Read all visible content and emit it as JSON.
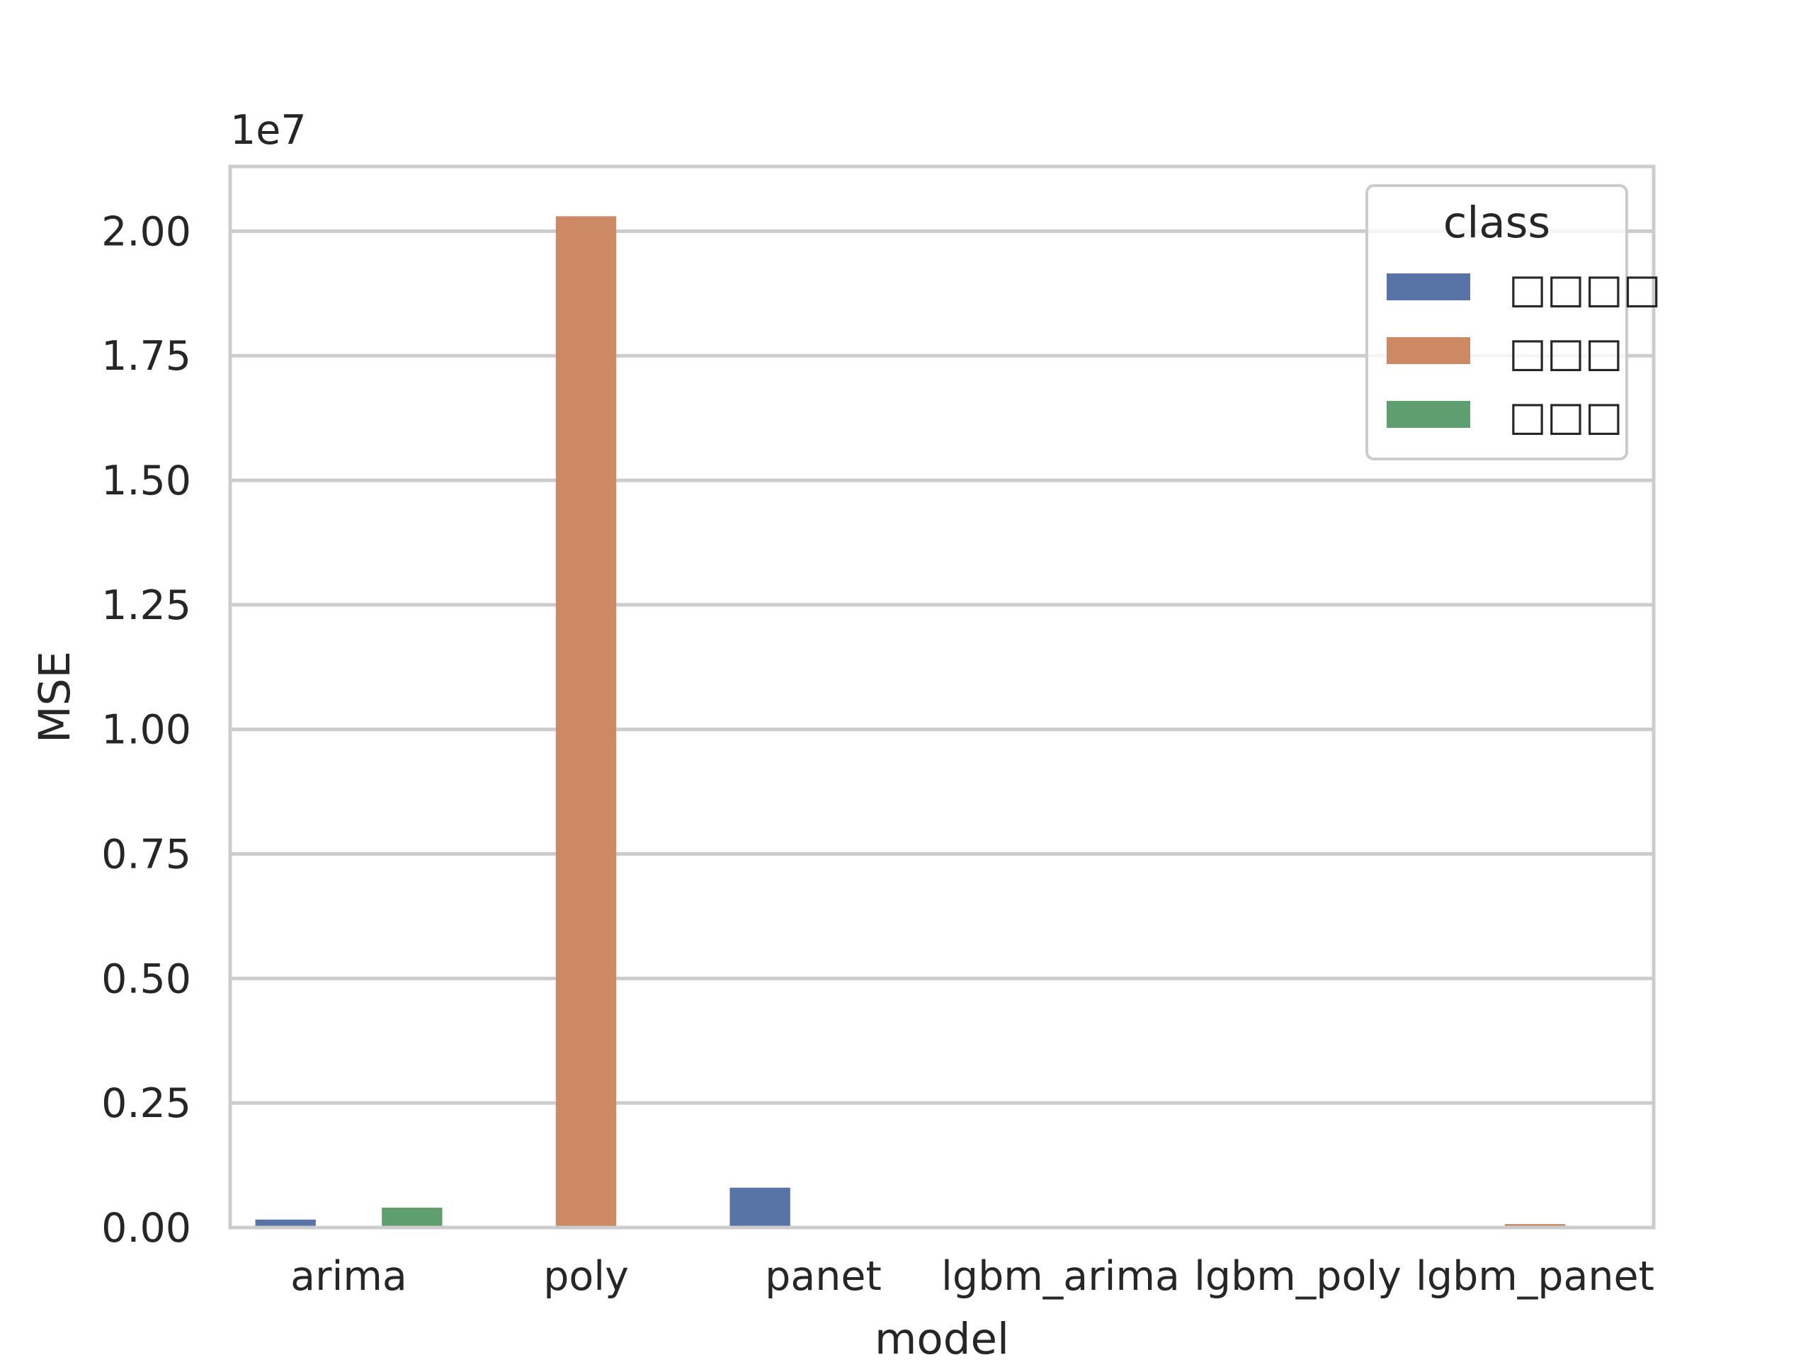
{
  "chart_data": {
    "type": "bar",
    "categories": [
      "arima",
      "poly",
      "panet",
      "lgbm_arima",
      "lgbm_poly",
      "lgbm_panet"
    ],
    "series": [
      {
        "name": "□□□□",
        "color": "#5874a6",
        "values": [
          160000,
          0,
          800000,
          0,
          0,
          10000
        ]
      },
      {
        "name": "□□□",
        "color": "#cc8963",
        "values": [
          0,
          20300000,
          0,
          0,
          0,
          70000
        ]
      },
      {
        "name": "□□□",
        "color": "#5f9e6e",
        "values": [
          400000,
          0,
          0,
          0,
          0,
          0
        ]
      }
    ],
    "xlabel": "model",
    "ylabel": "MSE",
    "y_scale_label": "1e7",
    "ylim": [
      0,
      21300000
    ],
    "yticks": [
      0,
      2500000,
      5000000,
      7500000,
      10000000,
      12500000,
      15000000,
      17500000,
      20000000
    ],
    "ytick_labels": [
      "0.00",
      "0.25",
      "0.50",
      "0.75",
      "1.00",
      "1.25",
      "1.50",
      "1.75",
      "2.00"
    ],
    "legend_title": "class",
    "legend_position": "top-right",
    "grid": true,
    "grid_color": "#cccccc",
    "frame_color": "#cccccc"
  }
}
